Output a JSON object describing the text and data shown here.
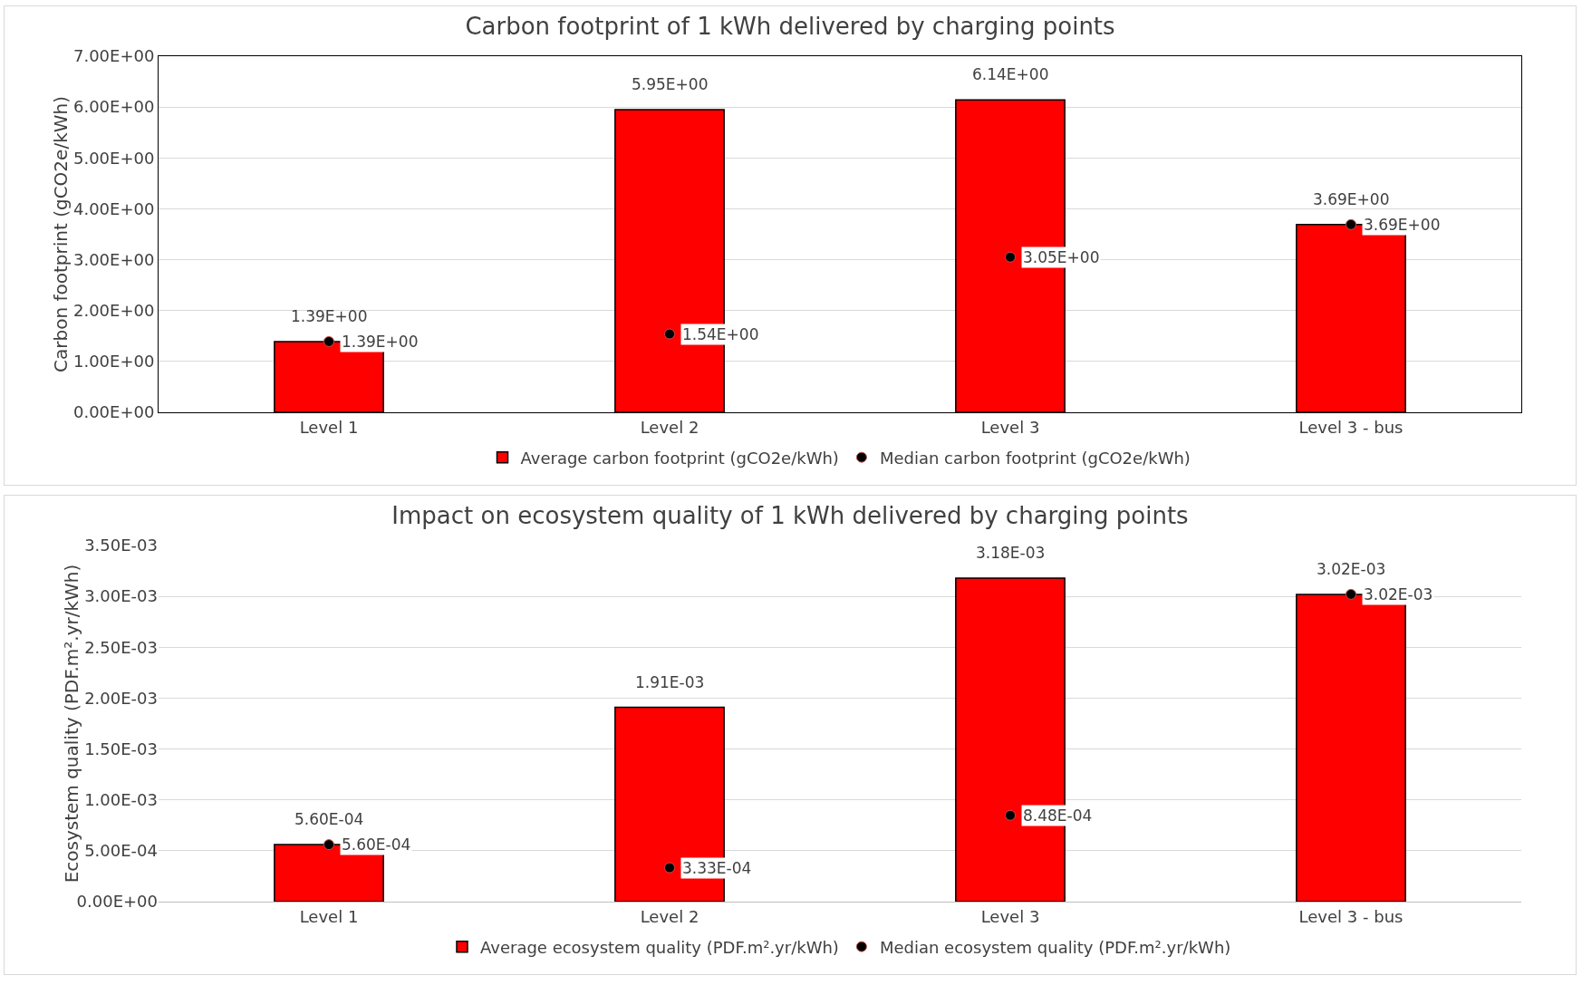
{
  "chart_data": [
    {
      "type": "bar",
      "title": "Carbon footprint of 1 kWh delivered by charging points",
      "ylabel": "Carbon footprint (gCO2e/kWh)",
      "categories": [
        "Level 1",
        "Level 2",
        "Level 3",
        "Level 3 - bus"
      ],
      "series": [
        {
          "name": "Average carbon footprint (gCO2e/kWh)",
          "color": "#ff0000",
          "values": [
            1.39,
            5.95,
            6.14,
            3.69
          ],
          "value_labels": [
            "1.39E+00",
            "5.95E+00",
            "6.14E+00",
            "3.69E+00"
          ]
        },
        {
          "name": "Median carbon footprint (gCO2e/kWh)",
          "type": "scatter",
          "color": "#000000",
          "values": [
            1.39,
            1.54,
            3.05,
            3.69
          ],
          "value_labels": [
            "1.39E+00",
            "1.54E+00",
            "3.05E+00",
            "3.69E+00"
          ]
        }
      ],
      "ylim": [
        0,
        7
      ],
      "yticks": [
        {
          "value": 0,
          "label": "0.00E+00"
        },
        {
          "value": 1,
          "label": "1.00E+00"
        },
        {
          "value": 2,
          "label": "2.00E+00"
        },
        {
          "value": 3,
          "label": "3.00E+00"
        },
        {
          "value": 4,
          "label": "4.00E+00"
        },
        {
          "value": 5,
          "label": "5.00E+00"
        },
        {
          "value": 6,
          "label": "6.00E+00"
        },
        {
          "value": 7,
          "label": "7.00E+00"
        }
      ],
      "grid": "y",
      "legend": "bottom",
      "marker": "circle"
    },
    {
      "type": "bar",
      "title": "Impact on ecosystem quality of 1 kWh delivered by charging points",
      "ylabel": "Ecosystem quality (PDF.m².yr/kWh)",
      "categories": [
        "Level 1",
        "Level 2",
        "Level 3",
        "Level 3 - bus"
      ],
      "series": [
        {
          "name": "Average ecosystem quality (PDF.m².yr/kWh)",
          "color": "#ff0000",
          "values": [
            0.00056,
            0.00191,
            0.00318,
            0.00302
          ],
          "value_labels": [
            "5.60E-04",
            "1.91E-03",
            "3.18E-03",
            "3.02E-03"
          ]
        },
        {
          "name": "Median ecosystem quality (PDF.m².yr/kWh)",
          "type": "scatter",
          "color": "#000000",
          "values": [
            0.00056,
            0.000333,
            0.000848,
            0.00302
          ],
          "value_labels": [
            "5.60E-04",
            "3.33E-04",
            "8.48E-04",
            "3.02E-03"
          ]
        }
      ],
      "ylim": [
        0,
        0.0035
      ],
      "yticks": [
        {
          "value": 0,
          "label": "0.00E+00"
        },
        {
          "value": 0.0005,
          "label": "5.00E-04"
        },
        {
          "value": 0.001,
          "label": "1.00E-03"
        },
        {
          "value": 0.0015,
          "label": "1.50E-03"
        },
        {
          "value": 0.002,
          "label": "2.00E-03"
        },
        {
          "value": 0.0025,
          "label": "2.50E-03"
        },
        {
          "value": 0.003,
          "label": "3.00E-03"
        },
        {
          "value": 0.0035,
          "label": "3.50E-03"
        }
      ],
      "grid": "y",
      "legend": "bottom",
      "marker": "circle"
    }
  ]
}
